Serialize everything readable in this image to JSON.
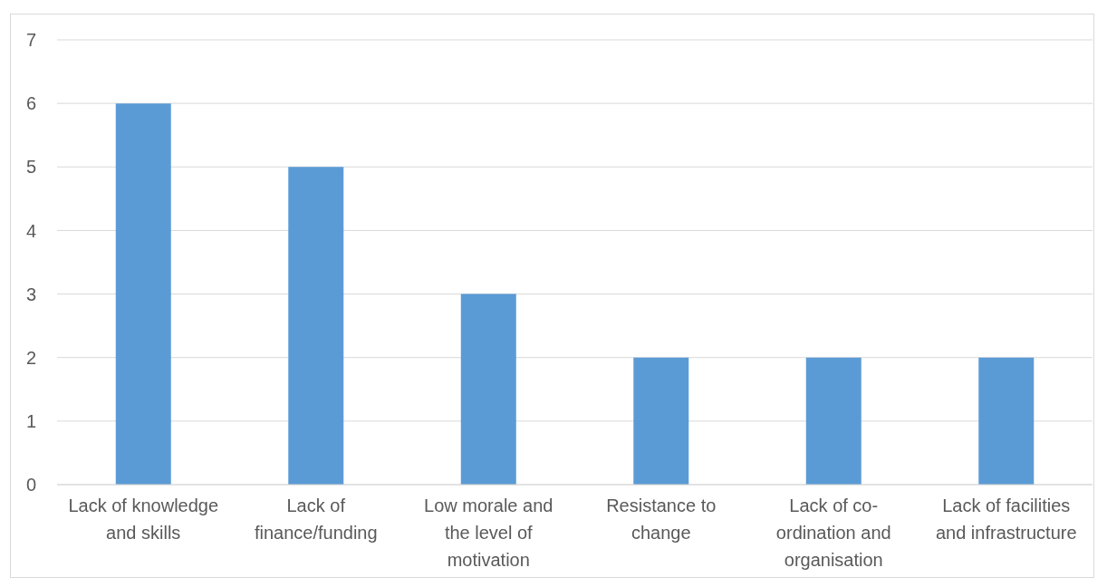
{
  "chart_data": {
    "type": "bar",
    "categories": [
      "Lack of knowledge and skills",
      "Lack of finance/funding",
      "Low morale and the level of motivation",
      "Resistance to change",
      "Lack of co-ordination and organisation",
      "Lack of facilities and infrastructure"
    ],
    "values": [
      6,
      5,
      3,
      2,
      2,
      2
    ],
    "color": "#5b9bd5",
    "ylim": [
      0,
      7
    ],
    "yticks": [
      0,
      1,
      2,
      3,
      4,
      5,
      6,
      7
    ],
    "grid": "y"
  }
}
